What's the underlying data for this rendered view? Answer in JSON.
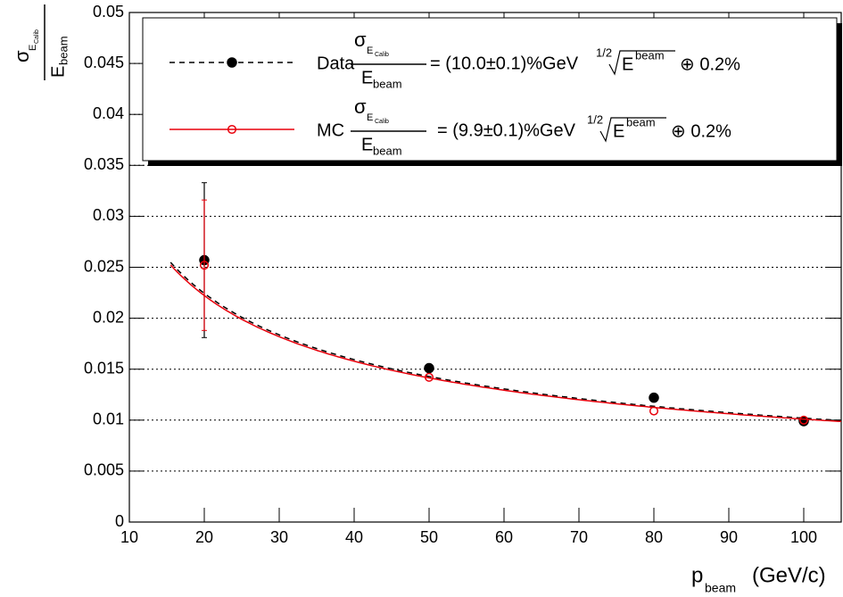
{
  "chart_data": {
    "type": "scatter",
    "x_label": {
      "main": "p",
      "sub": "beam",
      "unit": "(GeV/c)"
    },
    "y_label": {
      "main": "σ",
      "sub": "E",
      "subsub": "Calib",
      "denominator": "E",
      "denominator_sub": "beam"
    },
    "xlim": [
      10,
      105
    ],
    "xticks": [
      10,
      20,
      30,
      40,
      50,
      60,
      70,
      80,
      90,
      100
    ],
    "ylim": [
      0,
      0.05
    ],
    "yticks": [
      0,
      0.005,
      0.01,
      0.015,
      0.02,
      0.025,
      0.03,
      0.035,
      0.04,
      0.045,
      0.05
    ],
    "grid": true,
    "series": [
      {
        "name": "Data",
        "color": "#000000",
        "marker": "filled",
        "line_style": "dashed",
        "x": [
          20,
          50,
          80,
          100
        ],
        "values": [
          0.0257,
          0.0151,
          0.0122,
          0.0099
        ],
        "errors": [
          0.0076,
          null,
          null,
          null
        ],
        "fit": {
          "stochastic": 10.0,
          "constant": 0.2,
          "range": [
            15.5,
            105
          ]
        },
        "formula": {
          "numerator": "σ",
          "numerator_sub": "E",
          "numerator_subsub": "Calib",
          "denominator": "E",
          "denominator_sub": "beam",
          "coefficient": "= (10.0±0.1)%GeV",
          "power": "1/2",
          "root": "E",
          "root_sup": "beam",
          "constant": "⊕ 0.2%"
        }
      },
      {
        "name": "MC",
        "color": "#e8000b",
        "marker": "open",
        "line_style": "solid",
        "x": [
          20,
          50,
          80,
          100
        ],
        "values": [
          0.0252,
          0.0142,
          0.0109,
          0.01
        ],
        "errors": [
          0.0064,
          null,
          null,
          null
        ],
        "fit": {
          "stochastic": 9.9,
          "constant": 0.2,
          "range": [
            15.5,
            105
          ]
        },
        "formula": {
          "numerator": "σ",
          "numerator_sub": "E",
          "numerator_subsub": "Calib",
          "denominator": "E",
          "denominator_sub": "beam",
          "coefficient": "= (9.9±0.1)%GeV",
          "power": "1/2",
          "root": "E",
          "root_sup": "beam",
          "constant": "⊕ 0.2%"
        }
      }
    ]
  }
}
